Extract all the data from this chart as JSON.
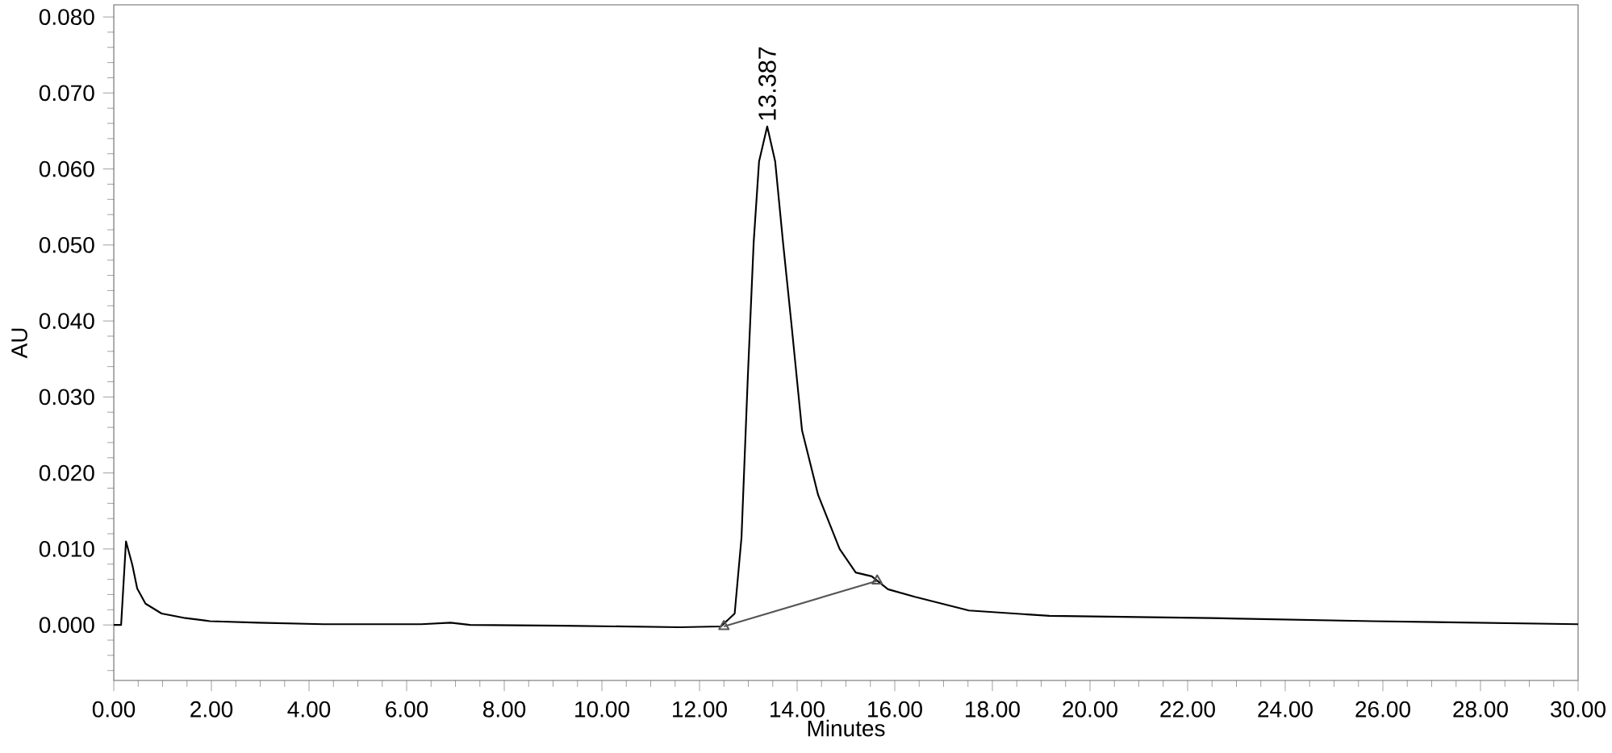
{
  "chart_data": {
    "type": "line",
    "xlabel": "Minutes",
    "ylabel": "AU",
    "xlim": [
      0,
      30
    ],
    "ylim": [
      -0.0073,
      0.0816
    ],
    "xticks": [
      {
        "value": 0,
        "label": "0.00"
      },
      {
        "value": 2,
        "label": "2.00"
      },
      {
        "value": 4,
        "label": "4.00"
      },
      {
        "value": 6,
        "label": "6.00"
      },
      {
        "value": 8,
        "label": "8.00"
      },
      {
        "value": 10,
        "label": "10.00"
      },
      {
        "value": 12,
        "label": "12.00"
      },
      {
        "value": 14,
        "label": "14.00"
      },
      {
        "value": 16,
        "label": "16.00"
      },
      {
        "value": 18,
        "label": "18.00"
      },
      {
        "value": 20,
        "label": "20.00"
      },
      {
        "value": 22,
        "label": "22.00"
      },
      {
        "value": 24,
        "label": "24.00"
      },
      {
        "value": 26,
        "label": "26.00"
      },
      {
        "value": 28,
        "label": "28.00"
      },
      {
        "value": 30,
        "label": "30.00"
      }
    ],
    "yticks": [
      {
        "value": 0,
        "label": "0.000"
      },
      {
        "value": 0.01,
        "label": "0.010"
      },
      {
        "value": 0.02,
        "label": "0.020"
      },
      {
        "value": 0.03,
        "label": "0.030"
      },
      {
        "value": 0.04,
        "label": "0.040"
      },
      {
        "value": 0.05,
        "label": "0.050"
      },
      {
        "value": 0.06,
        "label": "0.060"
      },
      {
        "value": 0.07,
        "label": "0.070"
      },
      {
        "value": 0.08,
        "label": "0.080"
      }
    ],
    "series": [
      {
        "color": "#000000",
        "marker": "none",
        "x": [
          0,
          0.15,
          0.25,
          0.38,
          0.48,
          0.65,
          0.98,
          1.47,
          1.97,
          2.96,
          4.3,
          6.3,
          6.9,
          7.3,
          9.2,
          11.6,
          12.44,
          12.72,
          12.86,
          12.99,
          13.11,
          13.22,
          13.387,
          13.55,
          13.71,
          13.88,
          14.1,
          14.43,
          14.87,
          15.2,
          15.53,
          15.86,
          16.41,
          17.52,
          19.17,
          22.48,
          25.79,
          30
        ],
        "values": [
          0,
          0,
          0.011,
          0.0079,
          0.0048,
          0.0028,
          0.0015,
          0.0009,
          0.0005,
          0.0003,
          0.0001,
          0.0001,
          0.0003,
          0,
          -0.0001,
          -0.0003,
          -0.0002,
          0.0015,
          0.0115,
          0.0327,
          0.0504,
          0.061,
          0.0656,
          0.061,
          0.0504,
          0.0398,
          0.0256,
          0.0171,
          0.01,
          0.0069,
          0.0064,
          0.0047,
          0.0037,
          0.0019,
          0.0012,
          0.0009,
          0.0005,
          0.0001
        ]
      },
      {
        "color": "#555555",
        "type": "line",
        "marker": "triangle",
        "x": [
          12.5,
          15.64
        ],
        "values": [
          -0.0002,
          0.0058
        ]
      }
    ],
    "annotations": [
      {
        "text": "13.387",
        "x": 13.387,
        "y": 0.0656
      }
    ]
  }
}
